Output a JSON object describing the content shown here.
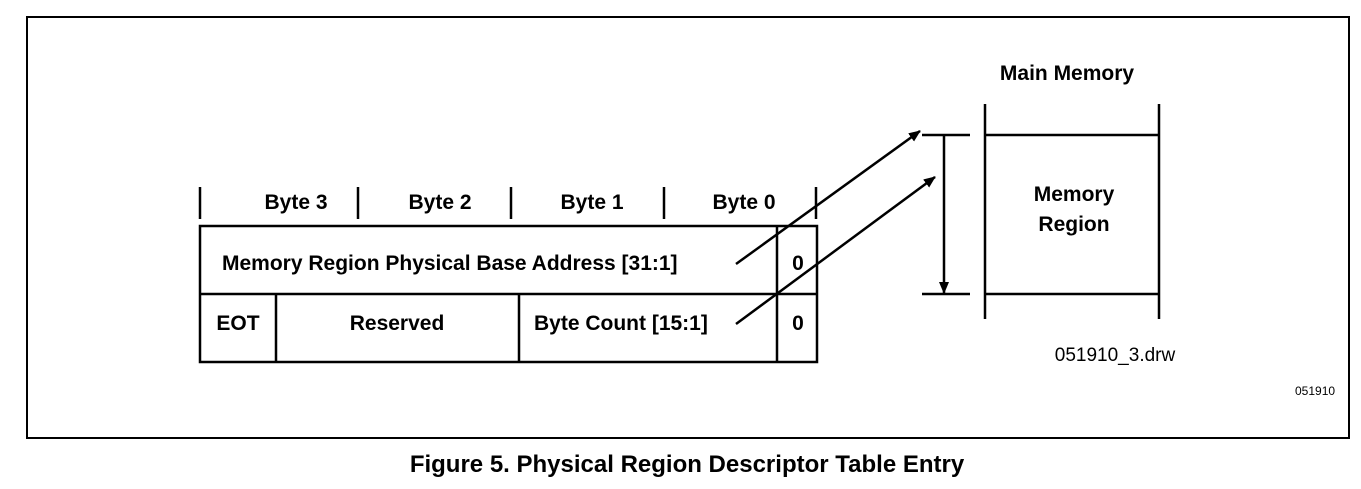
{
  "header": {
    "main_memory": "Main Memory"
  },
  "bytes": [
    "Byte 3",
    "Byte 2",
    "Byte 1",
    "Byte 0"
  ],
  "rows": {
    "row1": {
      "base_address": "Memory Region Physical Base Address [31:1]",
      "bit0": "0"
    },
    "row2": {
      "eot": "EOT",
      "reserved": "Reserved",
      "byte_count": "Byte Count [15:1]",
      "bit0": "0"
    }
  },
  "memory": {
    "region_line1": "Memory",
    "region_line2": "Region"
  },
  "drawing_id": "051910_3.drw",
  "corner_id": "051910",
  "caption": "Figure 5.  Physical Region Descriptor Table Entry"
}
